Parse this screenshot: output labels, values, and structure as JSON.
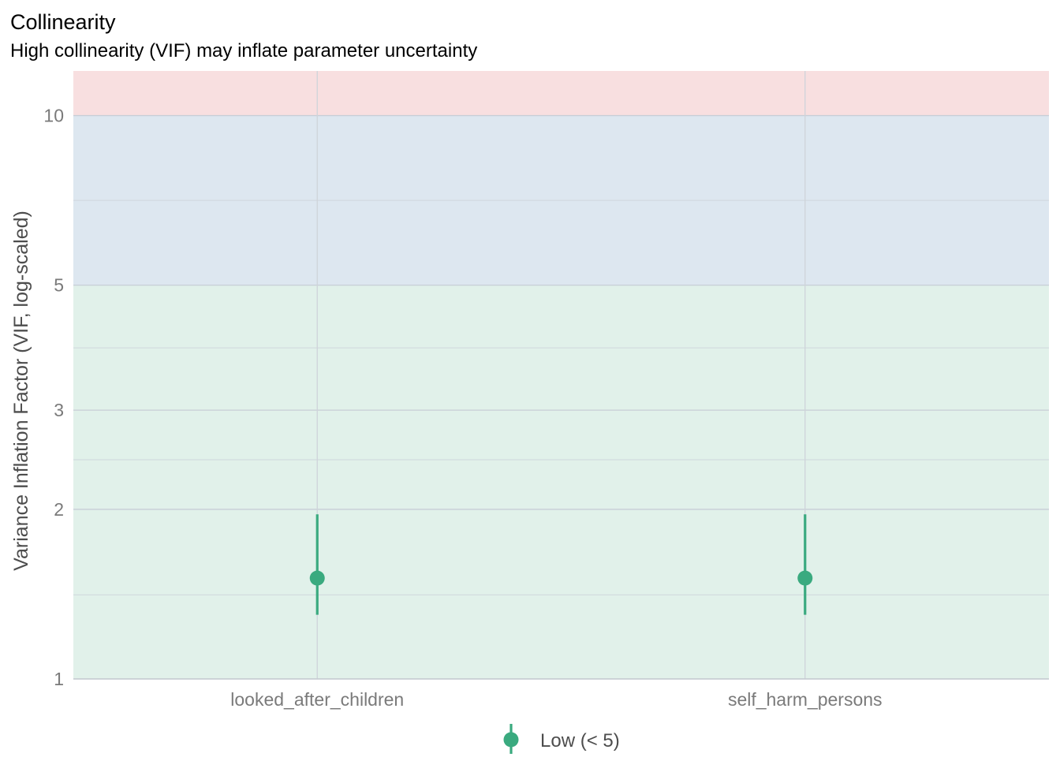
{
  "chart_data": {
    "type": "scatter",
    "title": "Collinearity",
    "subtitle": "High collinearity (VIF) may inflate parameter uncertainty",
    "xlabel": "",
    "ylabel": "Variance Inflation Factor (VIF, log-scaled)",
    "y_scale": "log",
    "ylim": [
      1,
      12
    ],
    "y_ticks": [
      1,
      2,
      3,
      5,
      10
    ],
    "y_minor_gridlines": [
      1.41,
      2.45,
      3.87,
      7.07
    ],
    "categories": [
      "looked_after_children",
      "self_harm_persons"
    ],
    "series": [
      {
        "name": "Low (< 5)",
        "color": "#3aaa7f",
        "values": [
          1.51,
          1.51
        ],
        "ci_low": [
          1.3,
          1.3
        ],
        "ci_high": [
          1.96,
          1.96
        ]
      }
    ],
    "bands": [
      {
        "from": 1,
        "to": 5,
        "color": "#e1f1ea"
      },
      {
        "from": 5,
        "to": 10,
        "color": "#dde7f0"
      },
      {
        "from": 10,
        "to": 12,
        "color": "#f8dfe0"
      }
    ],
    "grid": true,
    "legend": {
      "position": "bottom",
      "entries": [
        "Low (< 5)"
      ]
    }
  }
}
